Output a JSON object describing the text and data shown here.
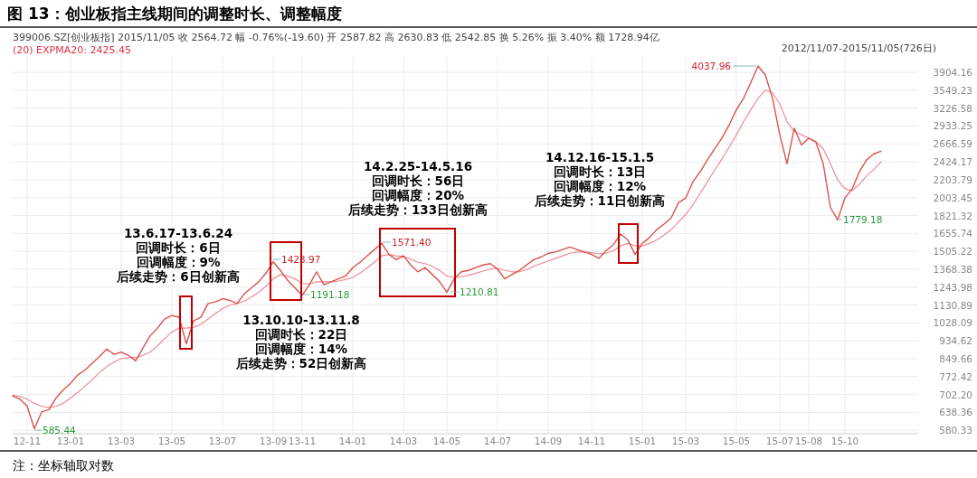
{
  "chart_data": {
    "type": "line",
    "title": "图 13：创业板指主线期间的调整时长、调整幅度",
    "categories": [
      null,
      null,
      "12-11",
      null,
      null,
      null,
      null,
      null,
      "13-01",
      null,
      null,
      null,
      null,
      null,
      null,
      "13-03",
      null,
      null,
      null,
      null,
      null,
      null,
      "13-05",
      null,
      null,
      null,
      null,
      null,
      null,
      "13-07",
      null,
      null,
      null,
      null,
      null,
      null,
      "13-09",
      null,
      null,
      null,
      "13-11",
      null,
      null,
      null,
      null,
      null,
      null,
      "14-01",
      null,
      null,
      null,
      null,
      null,
      null,
      "14-03",
      null,
      null,
      null,
      null,
      null,
      "14-05",
      null,
      null,
      null,
      null,
      null,
      null,
      "14-07",
      null,
      null,
      null,
      null,
      null,
      null,
      "14-09",
      null,
      null,
      null,
      null,
      null,
      "14-11",
      null,
      null,
      null,
      null,
      null,
      null,
      "15-01",
      null,
      null,
      null,
      null,
      null,
      "15-03",
      null,
      null,
      null,
      null,
      null,
      null,
      "15-05",
      null,
      null,
      null,
      null,
      null,
      "15-07",
      null,
      null,
      null,
      "15-08",
      null,
      null,
      null,
      null,
      "15-10",
      null,
      null,
      null,
      null,
      null
    ],
    "series": [
      {
        "color": "#d9534f",
        "values": [
          697,
          685,
          660,
          585.44,
          640,
          648,
          690,
          720,
          745,
          780,
          800,
          830,
          860,
          895,
          870,
          880,
          865,
          840,
          900,
          960,
          1000,
          1050,
          1070,
          1060,
          920,
          1040,
          1060,
          1140,
          1150,
          1170,
          1160,
          1140,
          1200,
          1240,
          1280,
          1340,
          1423.97,
          1360,
          1290,
          1240,
          1191.18,
          1260,
          1350,
          1260,
          1280,
          1300,
          1320,
          1380,
          1420,
          1470,
          1520,
          1571.4,
          1480,
          1440,
          1470,
          1400,
          1350,
          1380,
          1330,
          1280,
          1210.81,
          1300,
          1350,
          1360,
          1380,
          1400,
          1410,
          1370,
          1300,
          1330,
          1360,
          1400,
          1440,
          1460,
          1490,
          1500,
          1520,
          1540,
          1520,
          1500,
          1480,
          1450,
          1510,
          1560,
          1650,
          1600,
          1480,
          1570,
          1620,
          1690,
          1740,
          1800,
          1950,
          2000,
          2180,
          2300,
          2450,
          2600,
          2750,
          2950,
          3200,
          3400,
          3700,
          4037.96,
          3850,
          3400,
          2800,
          2400,
          2900,
          2650,
          2750,
          2690,
          2400,
          1900,
          1779.18,
          2000,
          2100,
          2300,
          2450,
          2530,
          2564.72
        ]
      },
      {
        "name": "(20) EXPMA20: 2425.45",
        "color": "#f08a96",
        "values": [
          700,
          695,
          685,
          670,
          660,
          655,
          660,
          670,
          690,
          710,
          735,
          760,
          790,
          815,
          835,
          850,
          855,
          855,
          865,
          880,
          910,
          945,
          980,
          1000,
          1000,
          1005,
          1020,
          1050,
          1080,
          1110,
          1130,
          1140,
          1155,
          1180,
          1210,
          1250,
          1300,
          1330,
          1320,
          1300,
          1270,
          1265,
          1280,
          1280,
          1280,
          1285,
          1295,
          1310,
          1340,
          1380,
          1420,
          1470,
          1480,
          1470,
          1465,
          1445,
          1420,
          1410,
          1390,
          1360,
          1320,
          1310,
          1315,
          1325,
          1340,
          1355,
          1370,
          1375,
          1360,
          1350,
          1350,
          1365,
          1390,
          1410,
          1430,
          1450,
          1470,
          1490,
          1500,
          1500,
          1495,
          1485,
          1490,
          1510,
          1550,
          1570,
          1550,
          1550,
          1570,
          1600,
          1640,
          1690,
          1760,
          1830,
          1930,
          2050,
          2180,
          2320,
          2460,
          2620,
          2800,
          3000,
          3200,
          3400,
          3550,
          3500,
          3300,
          3000,
          2850,
          2800,
          2750,
          2700,
          2600,
          2400,
          2200,
          2100,
          2080,
          2150,
          2250,
          2330,
          2425.45
        ]
      }
    ],
    "ylim": [
      570,
      4250
    ],
    "yticks": [
      580.33,
      638.36,
      {
        "value": 702.2,
        "label": "702.20"
      },
      772.42,
      849.66,
      934.62,
      1028.09,
      1130.89,
      1243.98,
      1368.38,
      1505.22,
      1655.74,
      1821.32,
      2003.45,
      2203.79,
      2424.17,
      2666.59,
      2933.25,
      3226.58,
      3549.23,
      3904.16
    ],
    "log": "y",
    "grid": true,
    "legend": "top left",
    "marker": "none",
    "line_style": "solid",
    "annotations": [
      "399006.SZ[创业板指]  2015/11/05  收 2564.72  幅 -0.76%(-19.60)  开 2587.82  高 2630.83  低 2542.85  换 5.26%  振 3.40%  额 1728.94亿",
      "2012/11/07-2015/11/05(726日)",
      "13.6.17-13.6.24",
      "回调时长：6日",
      "回调幅度：9%",
      "后续走势：6日创新高",
      "13.10.10-13.11.8",
      "回调时长：22日",
      "回调幅度：14%",
      "后续走势：52日创新高",
      "14.2.25-14.5.16",
      "回调时长：56日",
      "回调幅度：20%",
      "后续走势：133日创新高",
      "14.12.16-15.1.5",
      "回调时长：13日",
      "回调幅度：12%",
      "后续走势：11日创新高",
      "注：坐标轴取对数",
      "585.44",
      "1423.97",
      "1191.18",
      "1571.40",
      "1210.81",
      "4037.96",
      "1779.18"
    ]
  }
}
